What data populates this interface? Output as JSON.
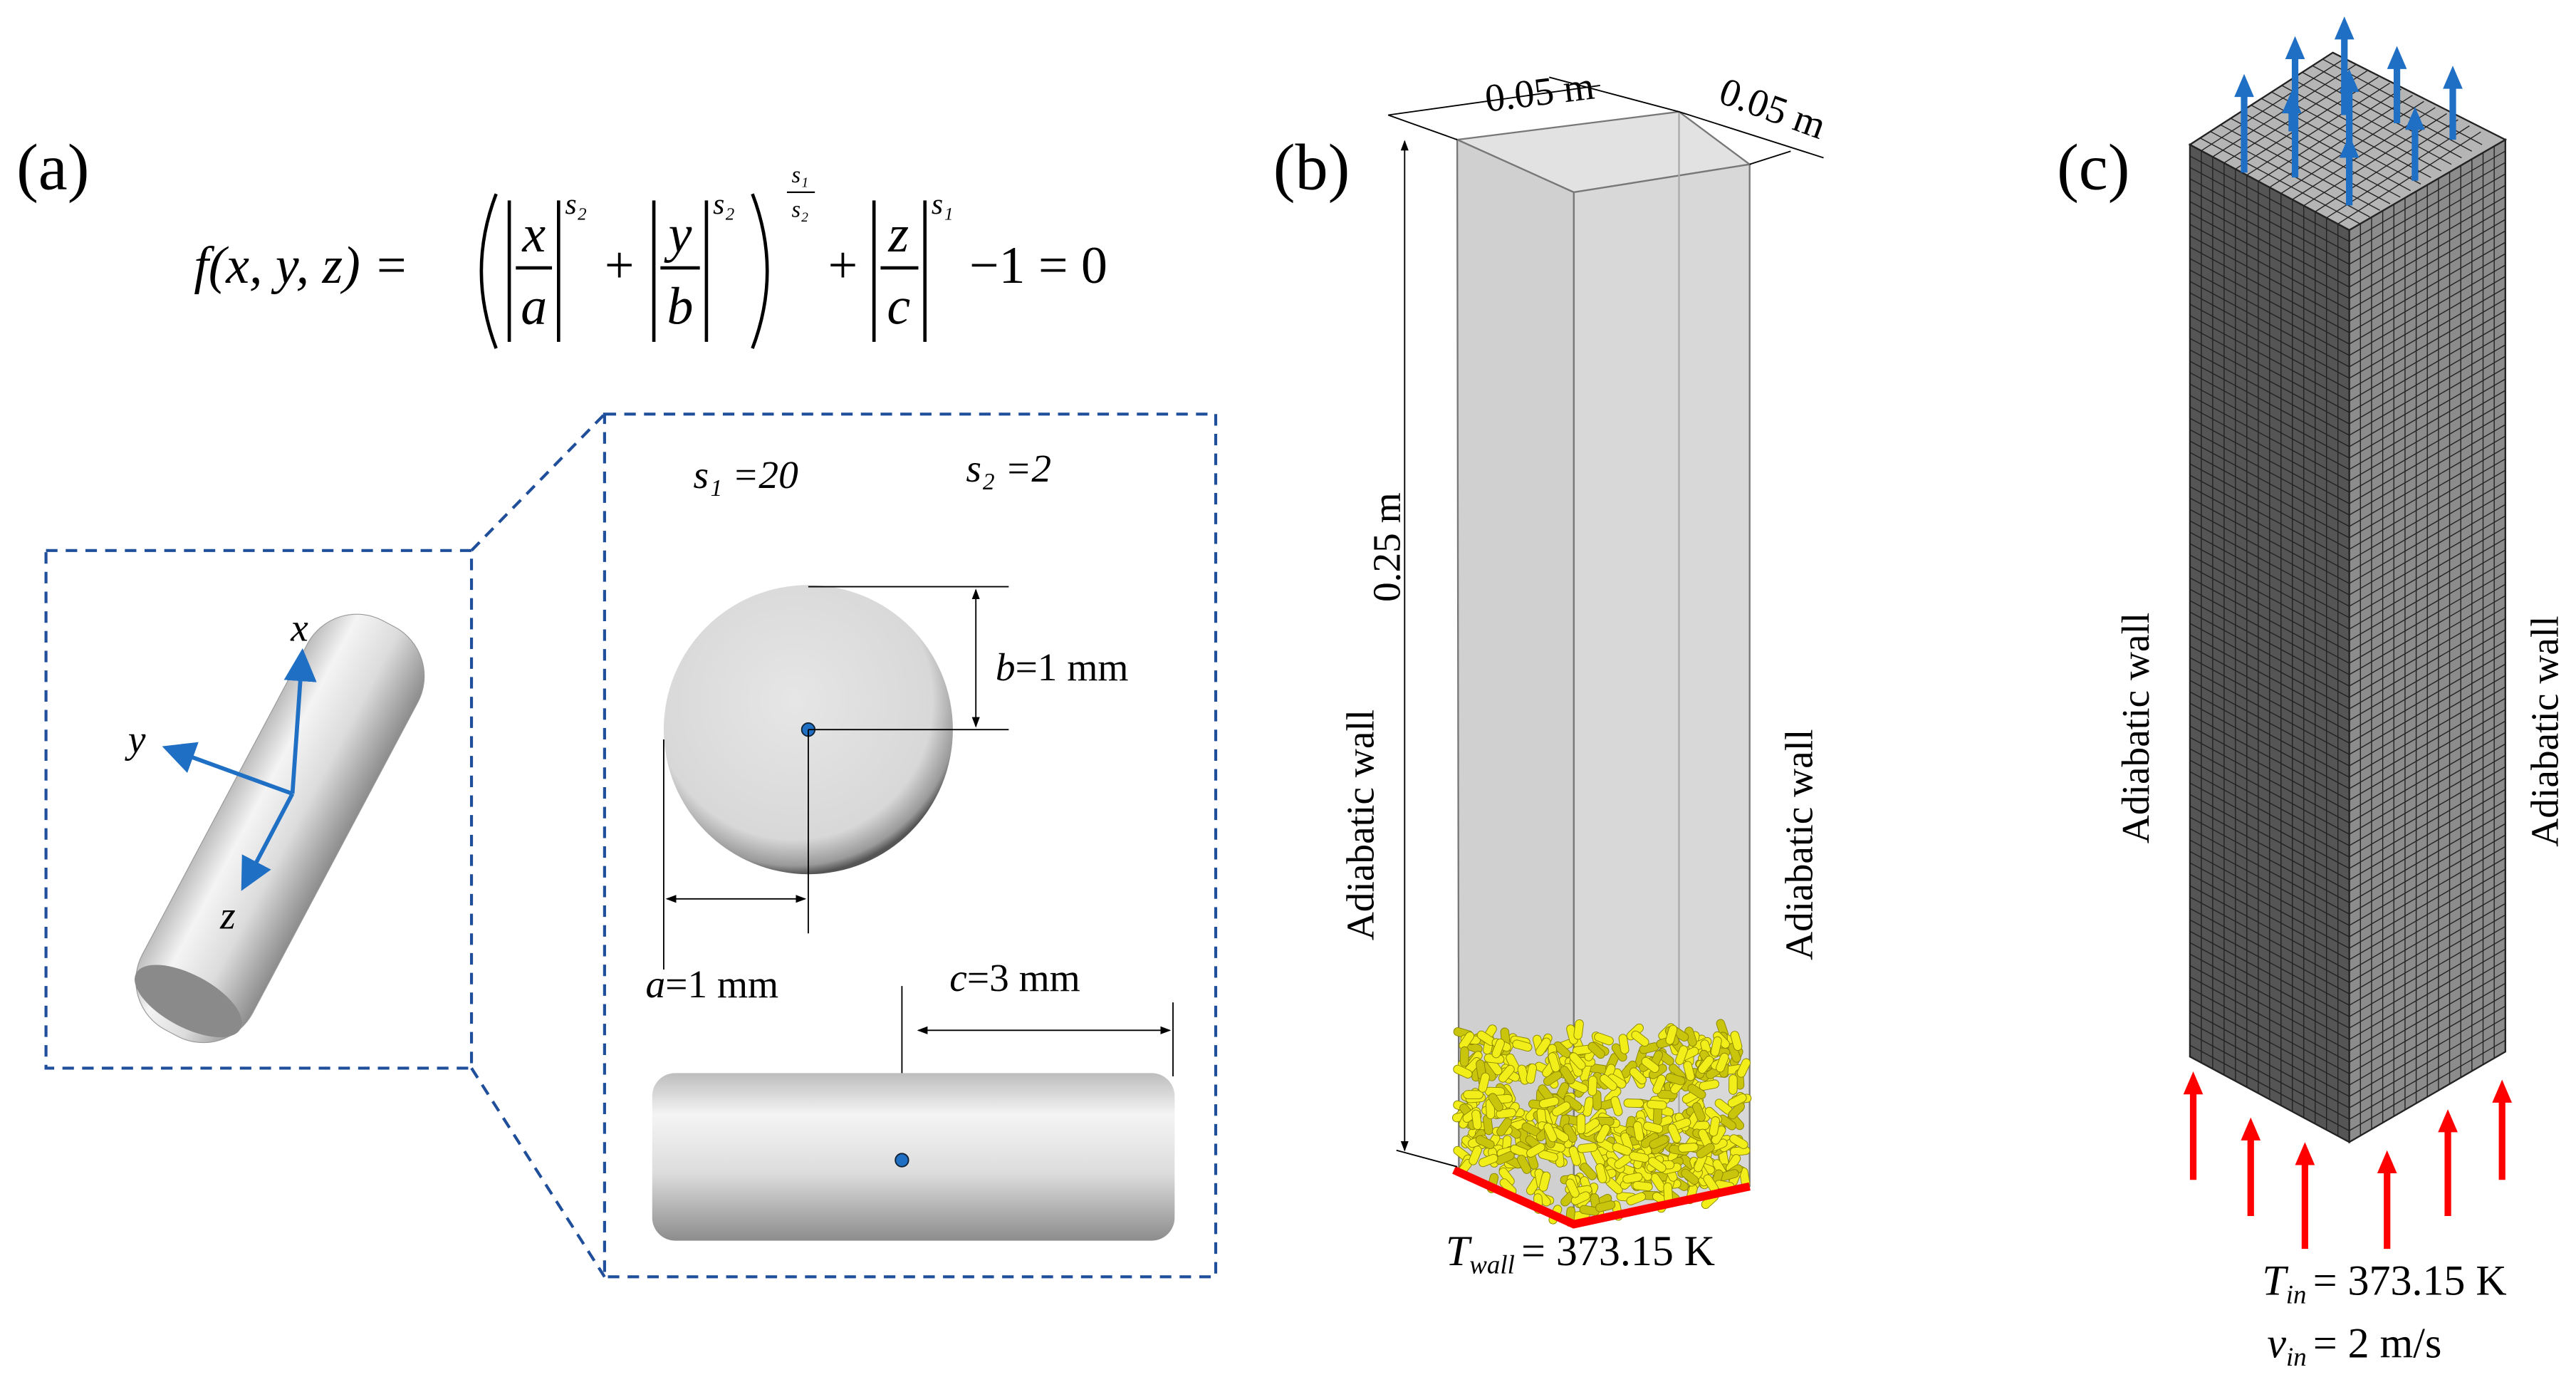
{
  "panel_labels": [
    "(a)",
    "(b)",
    "(c)"
  ],
  "equation": {
    "lhs": "f(x, y, z) =",
    "x": "x",
    "a": "a",
    "y": "y",
    "b": "b",
    "z": "z",
    "c": "c",
    "exp1": "s₂",
    "exp2": "s₂",
    "outer_exp_num": "s₁",
    "outer_exp_den": "s₂",
    "exp3": "s₁",
    "plus1": "+",
    "plus2": "+",
    "rhs": "−1 = 0"
  },
  "panel_a": {
    "axes": [
      "x",
      "y",
      "z"
    ],
    "s1": "s₁ =20",
    "s2": "s₂ =2",
    "b": {
      "var": "b",
      "rest": "=1 mm"
    },
    "a": {
      "var": "a",
      "rest": "=1 mm"
    },
    "c": {
      "var": "c",
      "rest": "=3 mm"
    }
  },
  "panel_b": {
    "width1": "0.05 m",
    "width2": "0.05 m",
    "height": "0.25 m",
    "wall_left": "Adiabatic wall",
    "wall_right": "Adiabatic wall",
    "boundary": {
      "symbol": "T",
      "subscript": "wall",
      "rest": "= 373.15 K"
    }
  },
  "panel_c": {
    "wall_left": "Adiabatic wall",
    "wall_right": "Adiabatic wall",
    "temp": {
      "symbol": "T",
      "subscript": "in",
      "rest": "= 373.15 K"
    },
    "velocity": {
      "symbol": "v",
      "subscript": "in",
      "rest": "= 2 m/s"
    }
  }
}
